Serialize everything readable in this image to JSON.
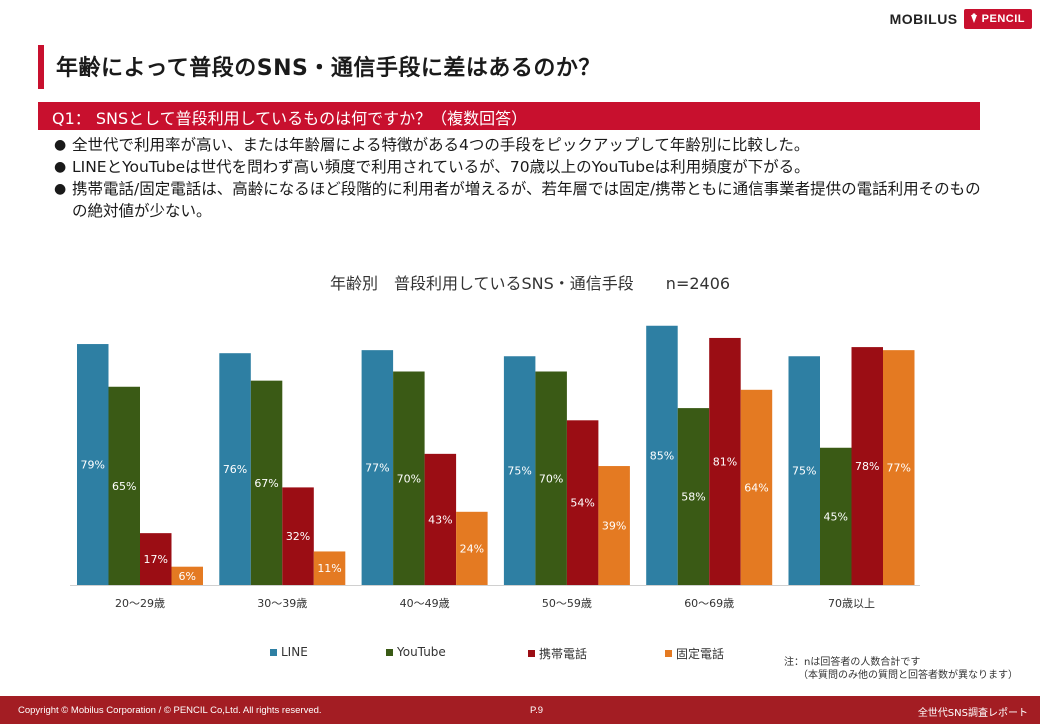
{
  "logo": {
    "mobilus": "MOBILUS",
    "pencil": "PENCIL"
  },
  "title": "年齢によって普段のSNS・通信手段に差はあるのか？",
  "question": "Q1： SNSとして普段利用しているものは何ですか？（複数回答）",
  "bullets": [
    "全世代で利用率が高い、または年齢層による特徴がある4つの手段をピックアップして年齢別に比較した。",
    "LINEとYouTubeは世代を問わず高い頻度で利用されているが、70歳以上のYouTubeは利用頻度が下がる。",
    "携帯電話/固定電話は、高齢になるほど段階的に利用者が増えるが、若年層では固定/携帯ともに通信事業者提供の電話利用そのものの絶対値が少ない。"
  ],
  "chart_data": {
    "type": "bar",
    "title": "年齢別　普段利用しているSNS・通信手段　　n=2406",
    "categories": [
      "20〜29歳",
      "30〜39歳",
      "40〜49歳",
      "50〜59歳",
      "60〜69歳",
      "70歳以上"
    ],
    "series": [
      {
        "name": "LINE",
        "color": "#2e7fa3",
        "values": [
          79,
          76,
          77,
          75,
          85,
          75
        ]
      },
      {
        "name": "YouTube",
        "color": "#3a5a15",
        "values": [
          65,
          67,
          70,
          70,
          58,
          45
        ]
      },
      {
        "name": "携帯電話",
        "color": "#9b0d14",
        "values": [
          17,
          32,
          43,
          54,
          81,
          78
        ]
      },
      {
        "name": "固定電話",
        "color": "#e47a22",
        "values": [
          6,
          11,
          24,
          39,
          64,
          77
        ]
      }
    ],
    "value_suffix": "%",
    "ylim": [
      0,
      100
    ],
    "grid": false,
    "legend_position": "bottom"
  },
  "note": {
    "line1": "注：nは回答者の人数合計です",
    "line2": "（本質問のみ他の質問と回答者数が異なります）"
  },
  "footer": {
    "copyright": "Copyright © Mobilus Corporation / © PENCIL Co,Ltd.  All rights reserved.",
    "page": "P.9",
    "report": "全世代SNS調査レポート"
  }
}
